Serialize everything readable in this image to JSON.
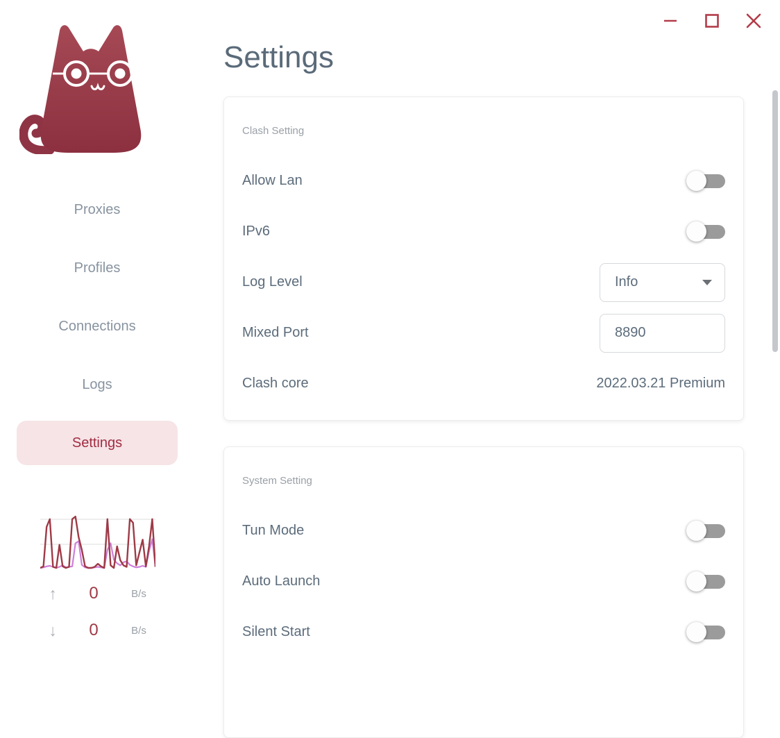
{
  "colors": {
    "accent": "#a12c40",
    "accent_soft_bg": "#f6e4e7",
    "slate_text": "#5c6c7b",
    "nav_inactive": "#8793a0",
    "section_label": "#9aa0a7",
    "window_control": "#b23c49",
    "toggle_track_off": "#9b9b9b",
    "chart_red": "#9e3a46",
    "chart_purple": "#ce7fd9"
  },
  "window": {
    "controls": [
      {
        "name": "minimize"
      },
      {
        "name": "maximize"
      },
      {
        "name": "close"
      }
    ]
  },
  "header": {
    "title": "Settings"
  },
  "sidebar": {
    "logo": "cat-with-glasses-logo",
    "items": [
      {
        "label": "Proxies",
        "active": false
      },
      {
        "label": "Profiles",
        "active": false
      },
      {
        "label": "Connections",
        "active": false
      },
      {
        "label": "Logs",
        "active": false
      },
      {
        "label": "Settings",
        "active": true
      }
    ],
    "traffic": {
      "up": {
        "arrow": "↑",
        "value": "0",
        "unit": "B/s"
      },
      "down": {
        "arrow": "↓",
        "value": "0",
        "unit": "B/s"
      },
      "graph": {
        "red": [
          0,
          3,
          80,
          95,
          2,
          0,
          45,
          3,
          0,
          2,
          95,
          100,
          60,
          35,
          3,
          0,
          0,
          2,
          8,
          3,
          0,
          95,
          5,
          0,
          42,
          15,
          5,
          2,
          95,
          88,
          5,
          30,
          55,
          3,
          42,
          95,
          2
        ],
        "purple": [
          0,
          1,
          3,
          4,
          2,
          0,
          2,
          5,
          1,
          2,
          3,
          48,
          52,
          6,
          1,
          0,
          0,
          1,
          2,
          1,
          0,
          35,
          48,
          16,
          9,
          5,
          11,
          13,
          6,
          3,
          1,
          2,
          4,
          2,
          33,
          56,
          2
        ]
      }
    }
  },
  "cards": [
    {
      "section": "Clash Setting",
      "rows": [
        {
          "label": "Allow Lan",
          "type": "toggle",
          "state": "off"
        },
        {
          "label": "IPv6",
          "type": "toggle",
          "state": "off"
        },
        {
          "label": "Log Level",
          "type": "select",
          "value": "Info"
        },
        {
          "label": "Mixed Port",
          "type": "input",
          "value": "8890"
        },
        {
          "label": "Clash core",
          "type": "text",
          "value": "2022.03.21 Premium"
        }
      ]
    },
    {
      "section": "System Setting",
      "rows": [
        {
          "label": "Tun Mode",
          "type": "toggle",
          "state": "off"
        },
        {
          "label": "Auto Launch",
          "type": "toggle",
          "state": "off"
        },
        {
          "label": "Silent Start",
          "type": "toggle",
          "state": "off"
        }
      ]
    }
  ]
}
